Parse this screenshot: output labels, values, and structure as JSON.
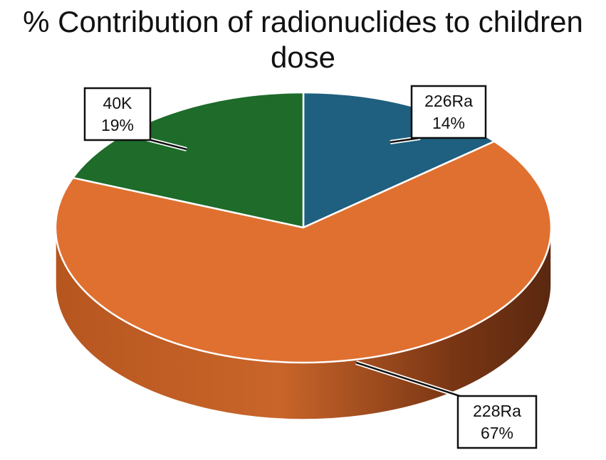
{
  "title_lines": [
    "% Contribution of radionuclides to children",
    "dose"
  ],
  "chart_data": {
    "type": "pie",
    "style": "3d",
    "title": "% Contribution of radionuclides to children dose",
    "slices": [
      {
        "label": "226Ra",
        "value": 14,
        "display": "14%",
        "color": "#1f5f7f"
      },
      {
        "label": "228Ra",
        "value": 67,
        "display": "67%",
        "color": "#e07030"
      },
      {
        "label": "40K",
        "value": 19,
        "display": "19%",
        "color": "#1e6b2a"
      }
    ],
    "legend": "none",
    "data_labels": "callouts"
  }
}
